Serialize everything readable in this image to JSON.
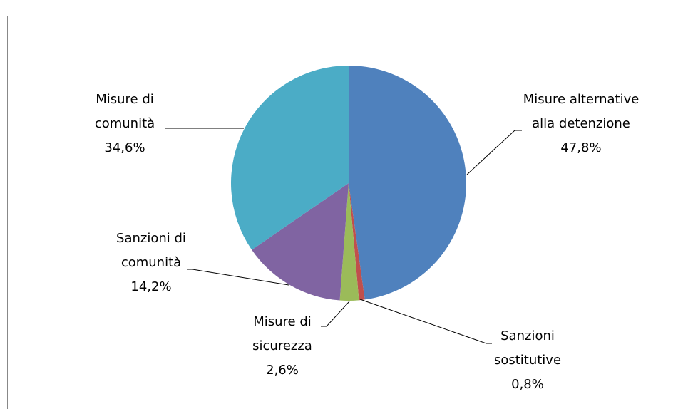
{
  "chart_data": {
    "type": "pie",
    "categories": [
      "Misure alternative alla detenzione",
      "Sanzioni sostitutive",
      "Misure di sicurezza",
      "Sanzioni di comunità",
      "Misure di comunità"
    ],
    "values": [
      47.8,
      0.8,
      2.6,
      14.2,
      34.6
    ],
    "value_labels": [
      "47,8%",
      "0,8%",
      "2,6%",
      "14,2%",
      "34,6%"
    ],
    "colors": [
      "#4f81bd",
      "#c0504d",
      "#9bbb59",
      "#8064a2",
      "#4bacc6"
    ]
  }
}
